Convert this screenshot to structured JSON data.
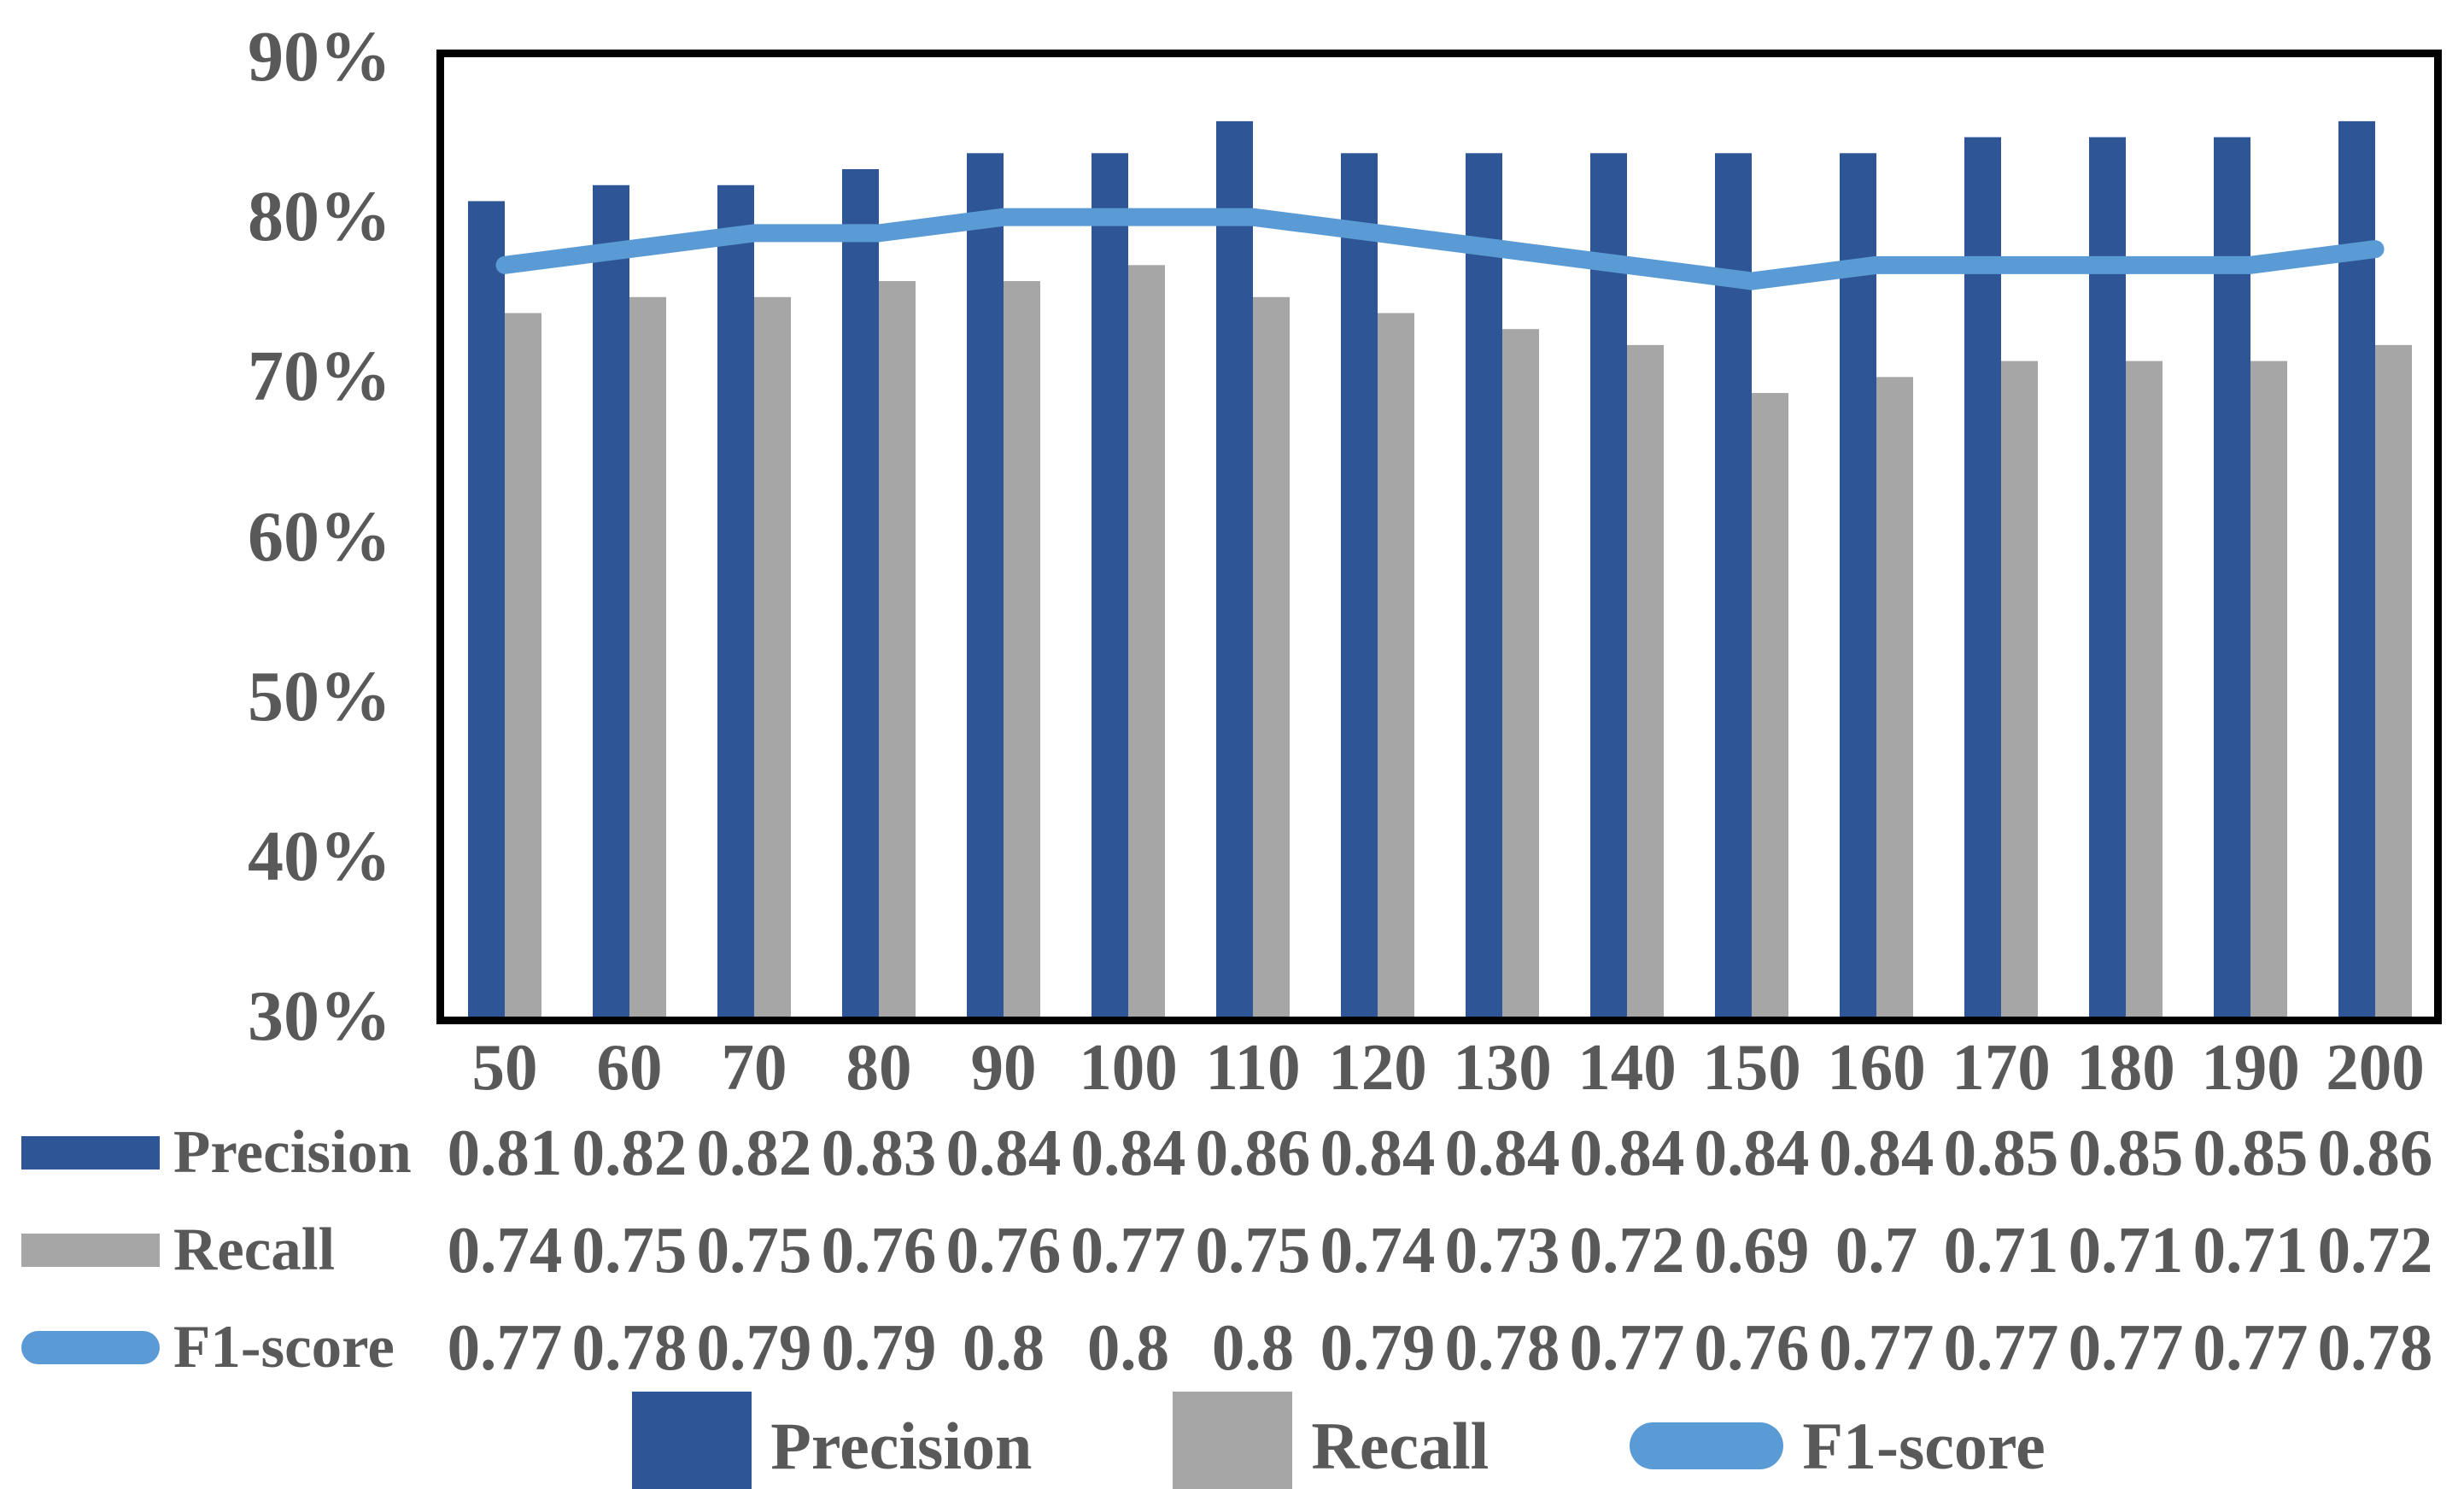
{
  "chart_data": {
    "type": "bar+line combo",
    "title": "",
    "categories": [
      50,
      60,
      70,
      80,
      90,
      100,
      110,
      120,
      130,
      140,
      150,
      160,
      170,
      180,
      190,
      200
    ],
    "series": [
      {
        "name": "Precision",
        "type": "bar",
        "color": "#2E5697",
        "values": [
          0.81,
          0.82,
          0.82,
          0.83,
          0.84,
          0.84,
          0.86,
          0.84,
          0.84,
          0.84,
          0.84,
          0.84,
          0.85,
          0.85,
          0.85,
          0.86
        ]
      },
      {
        "name": "Recall",
        "type": "bar",
        "color": "#A6A6A6",
        "values": [
          0.74,
          0.75,
          0.75,
          0.76,
          0.76,
          0.77,
          0.75,
          0.74,
          0.73,
          0.72,
          0.69,
          0.7,
          0.71,
          0.71,
          0.71,
          0.72
        ]
      },
      {
        "name": "F1-score",
        "type": "line",
        "color": "#5B9BD5",
        "values": [
          0.77,
          0.78,
          0.79,
          0.79,
          0.8,
          0.8,
          0.8,
          0.79,
          0.78,
          0.77,
          0.76,
          0.77,
          0.77,
          0.77,
          0.77,
          0.78
        ]
      }
    ],
    "y_axis": {
      "min": 0.3,
      "max": 0.9,
      "format": "percent",
      "tick_labels": [
        "90%",
        "80%",
        "70%",
        "60%",
        "50%",
        "40%",
        "30%"
      ]
    },
    "x_axis": {
      "labels": [
        "50",
        "60",
        "70",
        "80",
        "90",
        "100",
        "110",
        "120",
        "130",
        "140",
        "150",
        "160",
        "170",
        "180",
        "190",
        "200"
      ]
    },
    "grid": false,
    "plot_border_color": "#000000",
    "text_color": "#595959",
    "legend_position": "bottom"
  },
  "data_table": {
    "rows": [
      {
        "label": "Precision",
        "swatch": "bar",
        "color": "#2E5697",
        "values": [
          "0.81",
          "0.82",
          "0.82",
          "0.83",
          "0.84",
          "0.84",
          "0.86",
          "0.84",
          "0.84",
          "0.84",
          "0.84",
          "0.84",
          "0.85",
          "0.85",
          "0.85",
          "0.86"
        ]
      },
      {
        "label": "Recall",
        "swatch": "bar",
        "color": "#A6A6A6",
        "values": [
          "0.74",
          "0.75",
          "0.75",
          "0.76",
          "0.76",
          "0.77",
          "0.75",
          "0.74",
          "0.73",
          "0.72",
          "0.69",
          "0.7",
          "0.71",
          "0.71",
          "0.71",
          "0.72"
        ]
      },
      {
        "label": "F1-score",
        "swatch": "line",
        "color": "#5B9BD5",
        "values": [
          "0.77",
          "0.78",
          "0.79",
          "0.79",
          "0.8",
          "0.8",
          "0.8",
          "0.79",
          "0.78",
          "0.77",
          "0.76",
          "0.77",
          "0.77",
          "0.77",
          "0.77",
          "0.78"
        ]
      }
    ]
  },
  "legend": {
    "items": [
      {
        "label": "Precision",
        "swatch": "bar",
        "color": "#2E5697"
      },
      {
        "label": "Recall",
        "swatch": "bar",
        "color": "#A6A6A6"
      },
      {
        "label": "F1-score",
        "swatch": "line",
        "color": "#5B9BD5"
      }
    ]
  }
}
